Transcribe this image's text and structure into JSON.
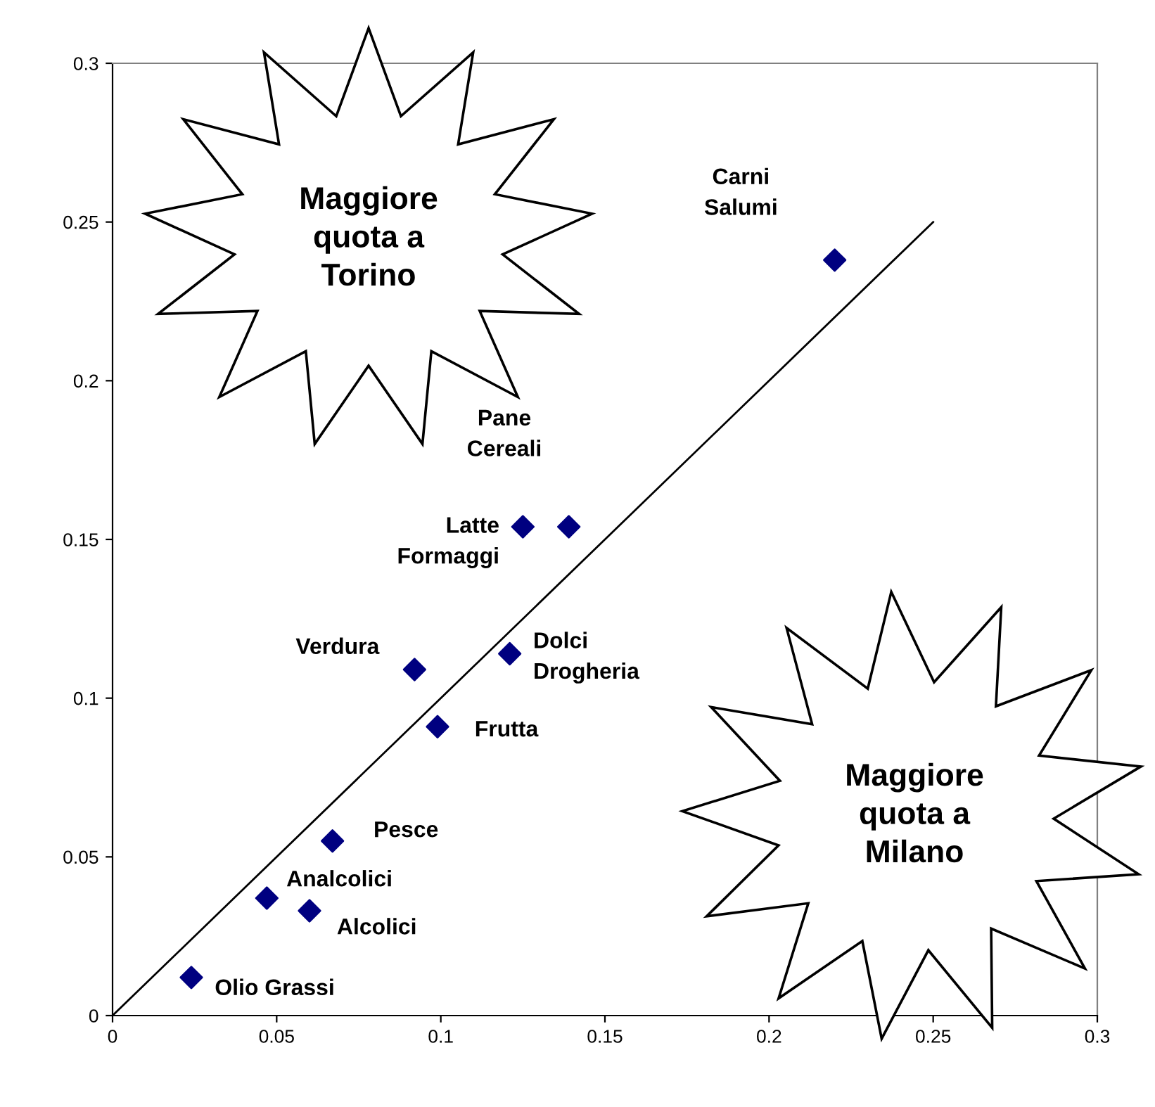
{
  "chart_data": {
    "type": "scatter",
    "marker": "diamond",
    "grid": false,
    "legend": false,
    "xlim": [
      0,
      0.3
    ],
    "ylim": [
      0,
      0.3
    ],
    "xticks": [
      0,
      0.05,
      0.1,
      0.15,
      0.2,
      0.25,
      0.3
    ],
    "yticks": [
      0,
      0.05,
      0.1,
      0.15,
      0.2,
      0.25,
      0.3
    ],
    "annotations": [
      "Maggiore\nquota a\nTorino",
      "Maggiore\nquota a\nMilano"
    ],
    "series": [
      {
        "name": "Carni\nSalumi",
        "color": "#000080",
        "x": [
          0.22
        ],
        "values": [
          0.238
        ]
      },
      {
        "name": "Pane\nCereali",
        "color": "#000080",
        "x": [
          0.139
        ],
        "values": [
          0.154
        ]
      },
      {
        "name": "Latte\nFormaggi",
        "color": "#000080",
        "x": [
          0.125
        ],
        "values": [
          0.154
        ]
      },
      {
        "name": "Dolci\nDrogheria",
        "color": "#000080",
        "x": [
          0.121
        ],
        "values": [
          0.114
        ]
      },
      {
        "name": "Verdura",
        "color": "#000080",
        "x": [
          0.092
        ],
        "values": [
          0.109
        ]
      },
      {
        "name": "Frutta",
        "color": "#000080",
        "x": [
          0.099
        ],
        "values": [
          0.091
        ]
      },
      {
        "name": "Pesce",
        "color": "#000080",
        "x": [
          0.067
        ],
        "values": [
          0.055
        ]
      },
      {
        "name": "Analcolici",
        "color": "#000080",
        "x": [
          0.047
        ],
        "values": [
          0.037
        ]
      },
      {
        "name": "Alcolici",
        "color": "#000080",
        "x": [
          0.06
        ],
        "values": [
          0.033
        ]
      },
      {
        "name": "Olio Grassi",
        "color": "#000080",
        "x": [
          0.024
        ],
        "values": [
          0.012
        ]
      },
      {
        "type": "line",
        "color": "#000000",
        "x": [
          0,
          0.25
        ],
        "values": [
          0,
          0.25
        ],
        "marker": "none"
      }
    ]
  }
}
